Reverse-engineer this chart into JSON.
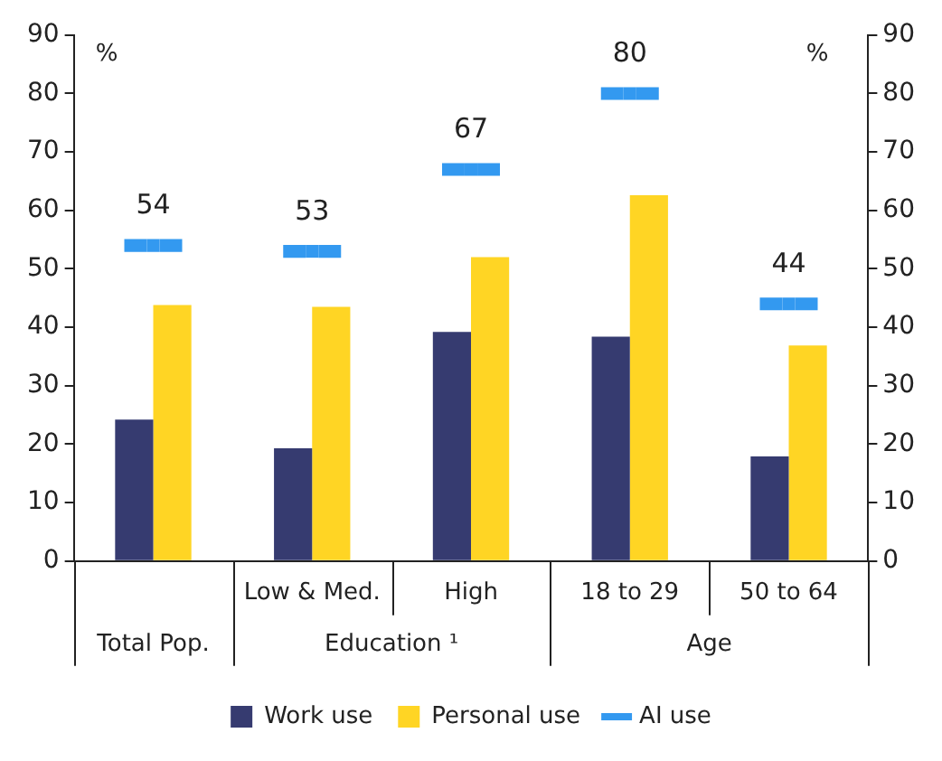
{
  "chart_data": {
    "type": "bar",
    "categories": [
      null,
      "Low & Med.",
      "High",
      "18 to 29",
      "50 to 64"
    ],
    "annotations": [
      "Total Pop.",
      "Education ¹",
      "Age"
    ],
    "ylabel": "%",
    "y2label": "%",
    "ylim": [
      0,
      90
    ],
    "yticks": [
      0,
      10,
      20,
      30,
      40,
      50,
      60,
      70,
      80,
      90
    ],
    "y2lim": [
      0,
      90
    ],
    "y2ticks": [
      0,
      10,
      20,
      30,
      40,
      50,
      60,
      70,
      80,
      90
    ],
    "grid": false,
    "legend": "bottom",
    "series": [
      {
        "name": "Work use",
        "color": "#363b70",
        "values": [
          24.2,
          19.3,
          39.2,
          38.4,
          17.9
        ]
      },
      {
        "name": "Personal use",
        "color": "#ffd524",
        "values": [
          43.8,
          43.5,
          52.0,
          62.6,
          36.9
        ]
      },
      {
        "name": "AI use",
        "type": "scatter",
        "color": "#3399f0",
        "values": [
          54,
          53,
          67,
          80,
          44
        ],
        "value_labels": [
          "54",
          "53",
          "67",
          "80",
          "44"
        ]
      }
    ]
  }
}
